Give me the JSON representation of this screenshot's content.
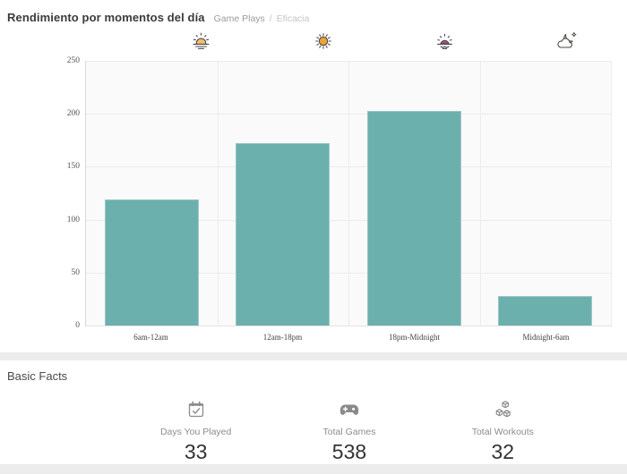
{
  "header": {
    "title": "Rendimiento por momentos del día",
    "breadcrumb": {
      "primary": "Game Plays",
      "separator": "/",
      "secondary": "Eficacia"
    }
  },
  "period_icons": [
    {
      "name": "sunrise-icon",
      "meaning": "morning 6am-12am"
    },
    {
      "name": "sun-icon",
      "meaning": "afternoon 12am-18pm"
    },
    {
      "name": "sunset-icon",
      "meaning": "evening 18pm-Midnight"
    },
    {
      "name": "night-moon-cloud-icon",
      "meaning": "night Midnight-6am"
    }
  ],
  "chart_data": {
    "type": "bar",
    "title": "Rendimiento por momentos del día",
    "categories": [
      "6am-12am",
      "12am-18pm",
      "18pm-Midnight",
      "Midnight-6am"
    ],
    "values": [
      119,
      172,
      203,
      28
    ],
    "xlabel": "",
    "ylabel": "",
    "ylim": [
      0,
      250
    ],
    "yticks": [
      0,
      50,
      100,
      150,
      200,
      250
    ],
    "grid": true,
    "legend": false,
    "bar_color": "#6cb0ad",
    "bar_border_color": "#9cc6c4",
    "plot_background": "#fafafa",
    "grid_color": "#ececec"
  },
  "basic_facts": {
    "title": "Basic Facts",
    "stats": [
      {
        "icon": "calendar-check-icon",
        "label": "Days You Played",
        "value": "33"
      },
      {
        "icon": "game-controller-icon",
        "label": "Total Games",
        "value": "538"
      },
      {
        "icon": "workout-cubes-icon",
        "label": "Total Workouts",
        "value": "32"
      }
    ]
  },
  "colors": {
    "divider": "#ececec",
    "title_text": "#3b3b3b",
    "axis_text": "#555555"
  }
}
